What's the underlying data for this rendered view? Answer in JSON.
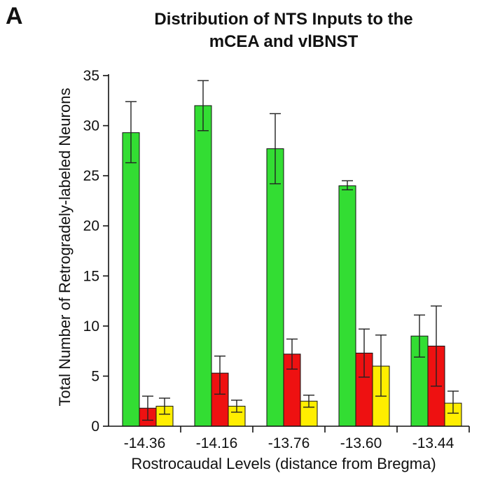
{
  "panel_label": "A",
  "chart_data": {
    "type": "bar",
    "title_lines": [
      "Distribution of NTS Inputs to the",
      "mCEA and vlBNST"
    ],
    "xlabel": "Rostrocaudal Levels (distance from Bregma)",
    "ylabel": "Total Number of Retrogradely-labeled Neurons",
    "categories": [
      "-14.36",
      "-14.16",
      "-13.76",
      "-13.60",
      "-13.44"
    ],
    "ylim": [
      0,
      35
    ],
    "yticks": [
      0,
      5,
      10,
      15,
      20,
      25,
      30,
      35
    ],
    "grid": false,
    "legend": "none",
    "series": [
      {
        "color": "#33dd33",
        "values": [
          29.3,
          32.0,
          27.7,
          24.0,
          9.0
        ],
        "err_low": [
          3.0,
          2.5,
          3.5,
          0.4,
          2.1
        ],
        "err_high": [
          3.1,
          2.5,
          3.5,
          0.5,
          2.1
        ]
      },
      {
        "color": "#ee1111",
        "values": [
          1.8,
          5.3,
          7.2,
          7.3,
          8.0
        ],
        "err_low": [
          1.2,
          2.1,
          1.5,
          2.4,
          4.0
        ],
        "err_high": [
          1.2,
          1.7,
          1.5,
          2.4,
          4.0
        ]
      },
      {
        "color": "#ffee00",
        "values": [
          2.0,
          2.0,
          2.5,
          6.0,
          2.3
        ],
        "err_low": [
          0.8,
          0.6,
          0.6,
          3.0,
          1.0
        ],
        "err_high": [
          0.8,
          0.6,
          0.6,
          3.1,
          1.2
        ]
      }
    ]
  }
}
